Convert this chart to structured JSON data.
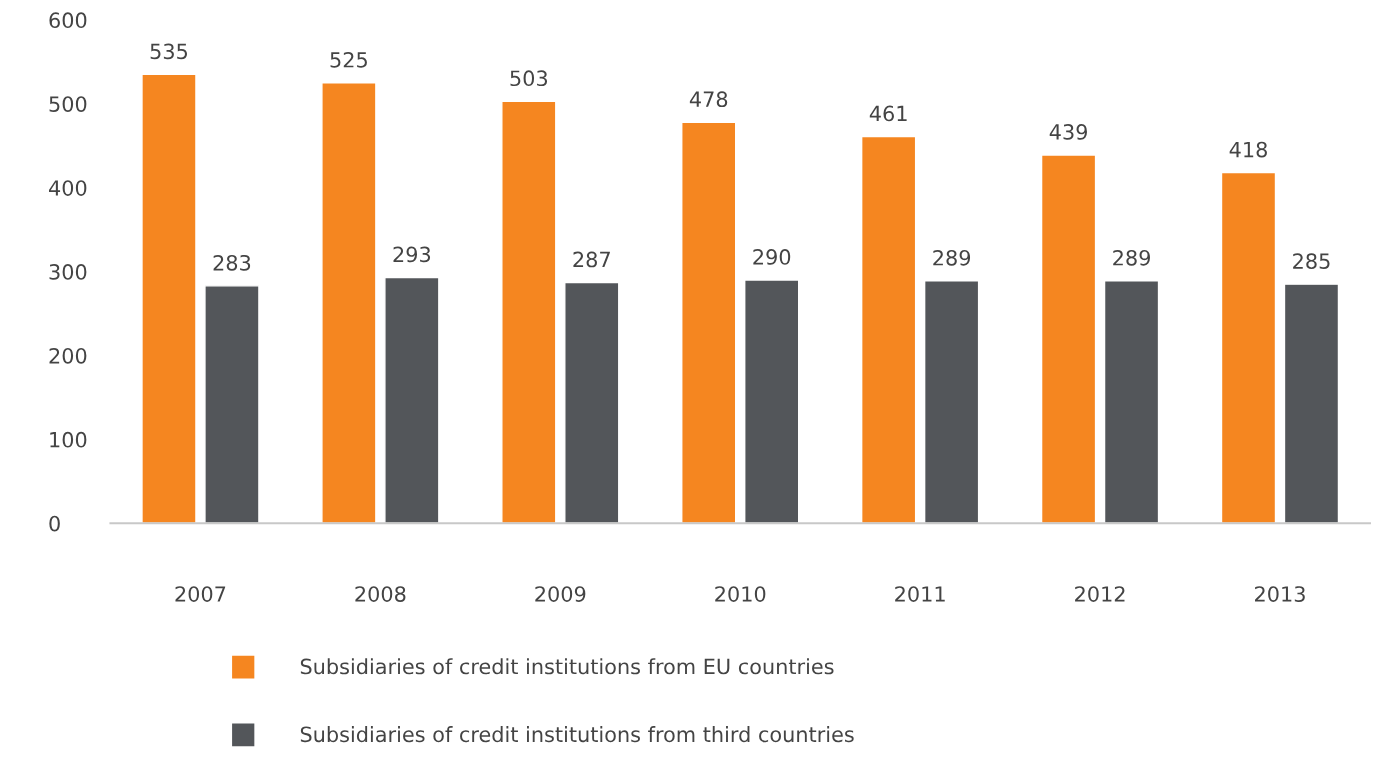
{
  "chart_data": {
    "type": "bar",
    "categories": [
      "2007",
      "2008",
      "2009",
      "2010",
      "2011",
      "2012",
      "2013"
    ],
    "series": [
      {
        "name": "Subsidiaries of credit institutions from EU countries",
        "color": "#f58620",
        "values": [
          535,
          525,
          503,
          478,
          461,
          439,
          418
        ]
      },
      {
        "name": "Subsidiaries of credit institutions from third countries",
        "color": "#53565a",
        "values": [
          283,
          293,
          287,
          290,
          289,
          289,
          285
        ]
      }
    ],
    "ylim": [
      0,
      600
    ],
    "yticks": [
      0,
      100,
      200,
      300,
      400,
      500,
      600
    ],
    "data_labels": true,
    "grid": false,
    "legend": "bottom"
  }
}
